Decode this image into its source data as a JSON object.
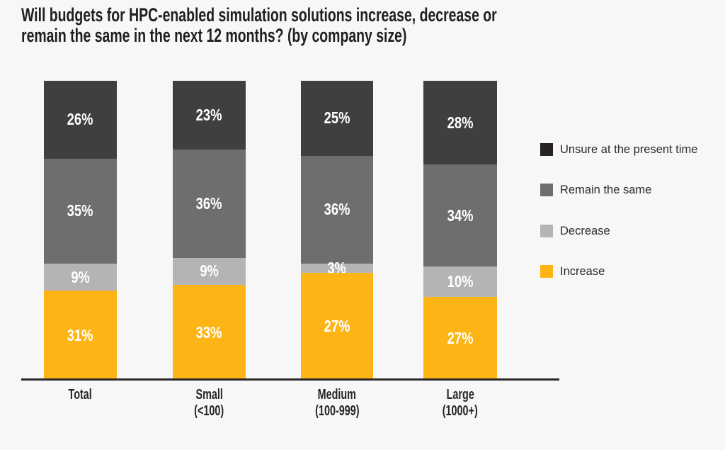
{
  "title": {
    "line1": "Will budgets for HPC-enabled simulation solutions increase, decrease or",
    "line2": "remain the same in the next 12 months? (by company size)"
  },
  "colors": {
    "background": "#F7F7F7",
    "axis_line": "#2B292A",
    "title_text": "#201E1E",
    "value_label_text": "#FFFFFF",
    "unsure_segment": "#3F3E40",
    "remain_segment": "#6E6E70",
    "decrease_segment": "#B4B4B6",
    "increase_segment": "#FDB515",
    "unsure_legend_swatch": "#262223"
  },
  "chart_data": {
    "type": "bar",
    "stacked": true,
    "unit": "%",
    "title": "Will budgets for HPC-enabled simulation solutions increase, decrease or remain the same in the next 12 months? (by company size)",
    "categories": [
      "Total",
      "Small (<100)",
      "Medium (100-999)",
      "Large (1000+)"
    ],
    "category_lines": [
      [
        "Total",
        ""
      ],
      [
        "Small",
        "(<100)"
      ],
      [
        "Medium",
        "(100-999)"
      ],
      [
        "Large",
        "(1000+)"
      ]
    ],
    "series": [
      {
        "name": "Unsure at the present time",
        "color": "#3F3E40",
        "values": [
          26,
          23,
          25,
          28
        ]
      },
      {
        "name": "Remain the same",
        "color": "#6E6E70",
        "values": [
          35,
          36,
          36,
          34
        ]
      },
      {
        "name": "Decrease",
        "color": "#B4B4B6",
        "values": [
          9,
          9,
          3,
          10
        ]
      },
      {
        "name": "Increase",
        "color": "#FDB515",
        "values": [
          31,
          33,
          27,
          27
        ]
      }
    ],
    "legend": [
      {
        "label": "Unsure at the present time",
        "color": "#262223"
      },
      {
        "label": "Remain the same",
        "color": "#6E6E70"
      },
      {
        "label": "Decrease",
        "color": "#B5B5B7"
      },
      {
        "label": "Increase",
        "color": "#FDB515"
      }
    ],
    "legend_position": "right",
    "grid": false,
    "ylim": [
      0,
      100
    ],
    "value_label_suffix": "%"
  }
}
